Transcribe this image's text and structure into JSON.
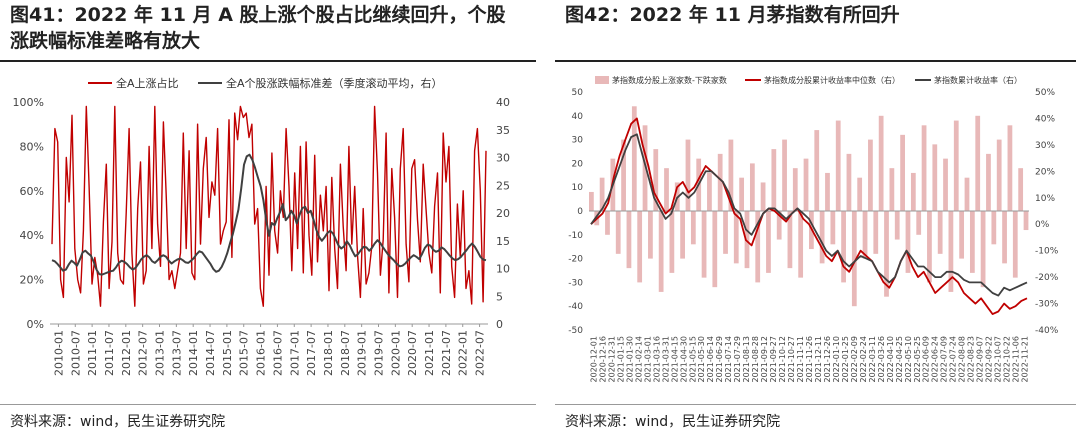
{
  "panels": {
    "left": {
      "title": "图41：2022 年 11 月 A 股上涨个股占比继续回升，个股涨跌幅标准差略有放大",
      "source": "资料来源：wind，民生证券研究院"
    },
    "right": {
      "title": "图42：2022 年 11 月茅指数有所回升",
      "source": "资料来源：wind，民生证券研究院"
    }
  },
  "colors": {
    "red": "#c00000",
    "gray": "#404040",
    "pink": "#e8b8b8",
    "axis": "#999999"
  },
  "chart_data": [
    {
      "type": "line",
      "title": "",
      "x_ticks": [
        "2010-01",
        "2010-07",
        "2011-01",
        "2011-07",
        "2012-01",
        "2012-07",
        "2013-01",
        "2013-07",
        "2014-01",
        "2014-07",
        "2015-01",
        "2015-07",
        "2016-01",
        "2016-07",
        "2017-01",
        "2017-07",
        "2018-01",
        "2018-07",
        "2019-01",
        "2019-07",
        "2020-01",
        "2020-07",
        "2021-01",
        "2021-07",
        "2022-01",
        "2022-07"
      ],
      "y_left": {
        "ticks": [
          "0%",
          "20%",
          "40%",
          "60%",
          "80%",
          "100%"
        ],
        "range": [
          0,
          100
        ]
      },
      "y_right": {
        "ticks": [
          "0",
          "5",
          "10",
          "15",
          "20",
          "25",
          "30",
          "35",
          "40"
        ],
        "range": [
          0,
          40
        ]
      },
      "legend_position": "top",
      "series": [
        {
          "name": "全A上涨占比",
          "axis": "left",
          "color": "#c00000",
          "values": [
            36,
            88,
            82,
            20,
            12,
            75,
            55,
            94,
            34,
            20,
            14,
            42,
            98,
            62,
            18,
            30,
            22,
            8,
            46,
            72,
            16,
            37,
            98,
            32,
            20,
            18,
            50,
            88,
            32,
            8,
            52,
            73,
            18,
            24,
            80,
            34,
            98,
            45,
            26,
            91,
            58,
            20,
            24,
            16,
            24,
            32,
            86,
            34,
            78,
            23,
            20,
            90,
            36,
            70,
            84,
            48,
            64,
            58,
            88,
            36,
            42,
            46,
            92,
            30,
            95,
            83,
            98,
            93,
            95,
            84,
            90,
            45,
            52,
            16,
            8,
            62,
            22,
            77,
            42,
            32,
            60,
            48,
            88,
            62,
            24,
            68,
            34,
            80,
            23,
            82,
            40,
            22,
            76,
            28,
            58,
            42,
            62,
            15,
            66,
            34,
            16,
            72,
            44,
            24,
            80,
            36,
            62,
            31,
            12,
            52,
            18,
            23,
            35,
            98,
            68,
            22,
            38,
            86,
            14,
            70,
            48,
            12,
            70,
            88,
            36,
            19,
            70,
            74,
            47,
            28,
            72,
            52,
            32,
            23,
            53,
            68,
            14,
            86,
            64,
            80,
            26,
            12,
            54,
            30,
            60,
            16,
            24,
            9,
            78,
            88,
            60,
            10,
            78
          ]
        },
        {
          "name": "全A个股涨跌幅标准差（季度滚动平均，右）",
          "axis": "right",
          "color": "#404040",
          "values": [
            11.5,
            11.3,
            10.8,
            10.2,
            9.6,
            9.8,
            10.7,
            11.4,
            11.0,
            10.5,
            11.6,
            12.9,
            13.2,
            12.7,
            12.3,
            11.2,
            9.8,
            9.0,
            8.9,
            9.1,
            9.3,
            9.5,
            9.6,
            10.2,
            11.0,
            11.4,
            11.2,
            10.8,
            10.2,
            9.8,
            10.1,
            10.8,
            11.6,
            12.1,
            12.4,
            12.0,
            11.3,
            11.0,
            11.5,
            12.1,
            12.4,
            12.1,
            11.4,
            10.9,
            11.3,
            11.6,
            11.8,
            11.5,
            11.1,
            11.0,
            11.4,
            11.9,
            12.6,
            13.1,
            12.9,
            12.2,
            11.5,
            10.8,
            9.9,
            9.4,
            9.6,
            10.3,
            11.4,
            12.8,
            14.6,
            16.2,
            18.3,
            20.6,
            24.4,
            28.7,
            30.2,
            30.5,
            29.6,
            28.1,
            26.4,
            24.8,
            22.3,
            18.7,
            15.9,
            18.2,
            17.8,
            19.1,
            20.2,
            21.6,
            18.7,
            19.3,
            20.4,
            19.6,
            18.1,
            19.7,
            20.9,
            21.1,
            20.0,
            20.4,
            18.8,
            17.0,
            15.7,
            15.0,
            15.6,
            16.4,
            16.8,
            16.3,
            15.2,
            14.1,
            13.6,
            14.0,
            14.9,
            14.2,
            13.1,
            12.2,
            12.6,
            13.3,
            13.9,
            13.8,
            13.2,
            13.7,
            14.5,
            15.1,
            14.6,
            13.8,
            13.1,
            12.4,
            11.9,
            11.4,
            10.8,
            10.4,
            10.5,
            10.9,
            11.5,
            12.0,
            12.4,
            12.1,
            11.7,
            12.6,
            13.7,
            14.3,
            14.1,
            13.4,
            13.0,
            13.2,
            13.8,
            13.5,
            12.9,
            12.3,
            11.8,
            11.5,
            11.7,
            12.1,
            12.7,
            13.3,
            14.0,
            14.5,
            13.9,
            13.0,
            12.1,
            11.6,
            11.5
          ]
        }
      ]
    },
    {
      "type": "bar+line",
      "title": "",
      "x_ticks": [
        "2020-12-01",
        "2020-12-16",
        "2020-12-31",
        "2021-01-15",
        "2021-01-30",
        "2021-02-14",
        "2021-03-01",
        "2021-03-16",
        "2021-03-31",
        "2021-04-15",
        "2021-04-30",
        "2021-05-15",
        "2021-05-30",
        "2021-06-14",
        "2021-06-29",
        "2021-07-14",
        "2021-07-29",
        "2021-08-13",
        "2021-08-28",
        "2021-09-12",
        "2021-09-27",
        "2021-10-12",
        "2021-10-27",
        "2021-11-11",
        "2021-11-26",
        "2021-12-11",
        "2021-12-26",
        "2022-01-10",
        "2022-01-25",
        "2022-02-09",
        "2022-02-24",
        "2022-03-11",
        "2022-03-26",
        "2022-04-10",
        "2022-04-25",
        "2022-05-10",
        "2022-05-25",
        "2022-06-09",
        "2022-06-24",
        "2022-07-09",
        "2022-07-24",
        "2022-08-08",
        "2022-08-23",
        "2022-09-07",
        "2022-09-22",
        "2022-10-07",
        "2022-10-22",
        "2022-11-06",
        "2022-11-21"
      ],
      "y_left": {
        "ticks": [
          "-50",
          "-40",
          "-30",
          "-20",
          "-10",
          "0",
          "10",
          "20",
          "30",
          "40",
          "50"
        ],
        "range": [
          -50,
          50
        ]
      },
      "y_right": {
        "ticks": [
          "-40%",
          "-30%",
          "-20%",
          "-10%",
          "0%",
          "10%",
          "20%",
          "30%",
          "40%",
          "50%"
        ],
        "range": [
          -40,
          50
        ]
      },
      "legend_position": "top",
      "series": [
        {
          "name": "茅指数成分股上涨家数-下跌家数",
          "type": "bar",
          "axis": "left",
          "color": "#e8b8b8",
          "values": [
            8,
            -6,
            14,
            -10,
            22,
            -18,
            30,
            -24,
            44,
            -30,
            36,
            -20,
            26,
            -34,
            18,
            -26,
            12,
            -20,
            30,
            -14,
            22,
            -28,
            16,
            -32,
            24,
            -18,
            30,
            -22,
            14,
            -24,
            20,
            -30,
            12,
            -26,
            26,
            -12,
            30,
            -24,
            18,
            -28,
            22,
            -16,
            34,
            -22,
            16,
            -14,
            38,
            -30,
            24,
            -40,
            14,
            -20,
            30,
            -18,
            40,
            -36,
            18,
            -12,
            32,
            -26,
            16,
            -10,
            36,
            -30,
            28,
            -18,
            22,
            -34,
            38,
            -20,
            14,
            -26,
            40,
            -32,
            24,
            -14,
            30,
            -22,
            36,
            -28,
            18,
            -8
          ]
        },
        {
          "name": "茅指数成分股累计收益率中位数（右）",
          "type": "line",
          "axis": "right",
          "color": "#c00000",
          "values": [
            0,
            2,
            4,
            8,
            18,
            26,
            32,
            38,
            40,
            30,
            22,
            12,
            8,
            4,
            6,
            14,
            16,
            12,
            14,
            18,
            22,
            20,
            18,
            16,
            10,
            4,
            2,
            -6,
            -8,
            -2,
            4,
            6,
            5,
            3,
            1,
            4,
            6,
            2,
            0,
            -4,
            -8,
            -12,
            -14,
            -10,
            -16,
            -18,
            -14,
            -10,
            -12,
            -14,
            -18,
            -22,
            -24,
            -20,
            -14,
            -10,
            -16,
            -20,
            -18,
            -22,
            -26,
            -24,
            -22,
            -20,
            -22,
            -26,
            -28,
            -30,
            -28,
            -31,
            -34,
            -33,
            -30,
            -32,
            -31,
            -29,
            -28
          ]
        },
        {
          "name": "茅指数累计收益率（右）",
          "type": "line",
          "axis": "right",
          "color": "#404040",
          "values": [
            0,
            3,
            6,
            10,
            16,
            22,
            28,
            33,
            34,
            26,
            18,
            10,
            6,
            2,
            4,
            10,
            12,
            10,
            12,
            16,
            20,
            20,
            18,
            16,
            12,
            6,
            4,
            -2,
            -4,
            0,
            4,
            6,
            6,
            4,
            2,
            4,
            6,
            4,
            2,
            -2,
            -6,
            -10,
            -12,
            -10,
            -14,
            -16,
            -14,
            -12,
            -13,
            -14,
            -18,
            -20,
            -22,
            -20,
            -14,
            -10,
            -13,
            -16,
            -16,
            -18,
            -20,
            -20,
            -18,
            -18,
            -19,
            -21,
            -22,
            -22,
            -22,
            -24,
            -26,
            -27,
            -24,
            -25,
            -24,
            -23,
            -22
          ]
        }
      ]
    }
  ]
}
